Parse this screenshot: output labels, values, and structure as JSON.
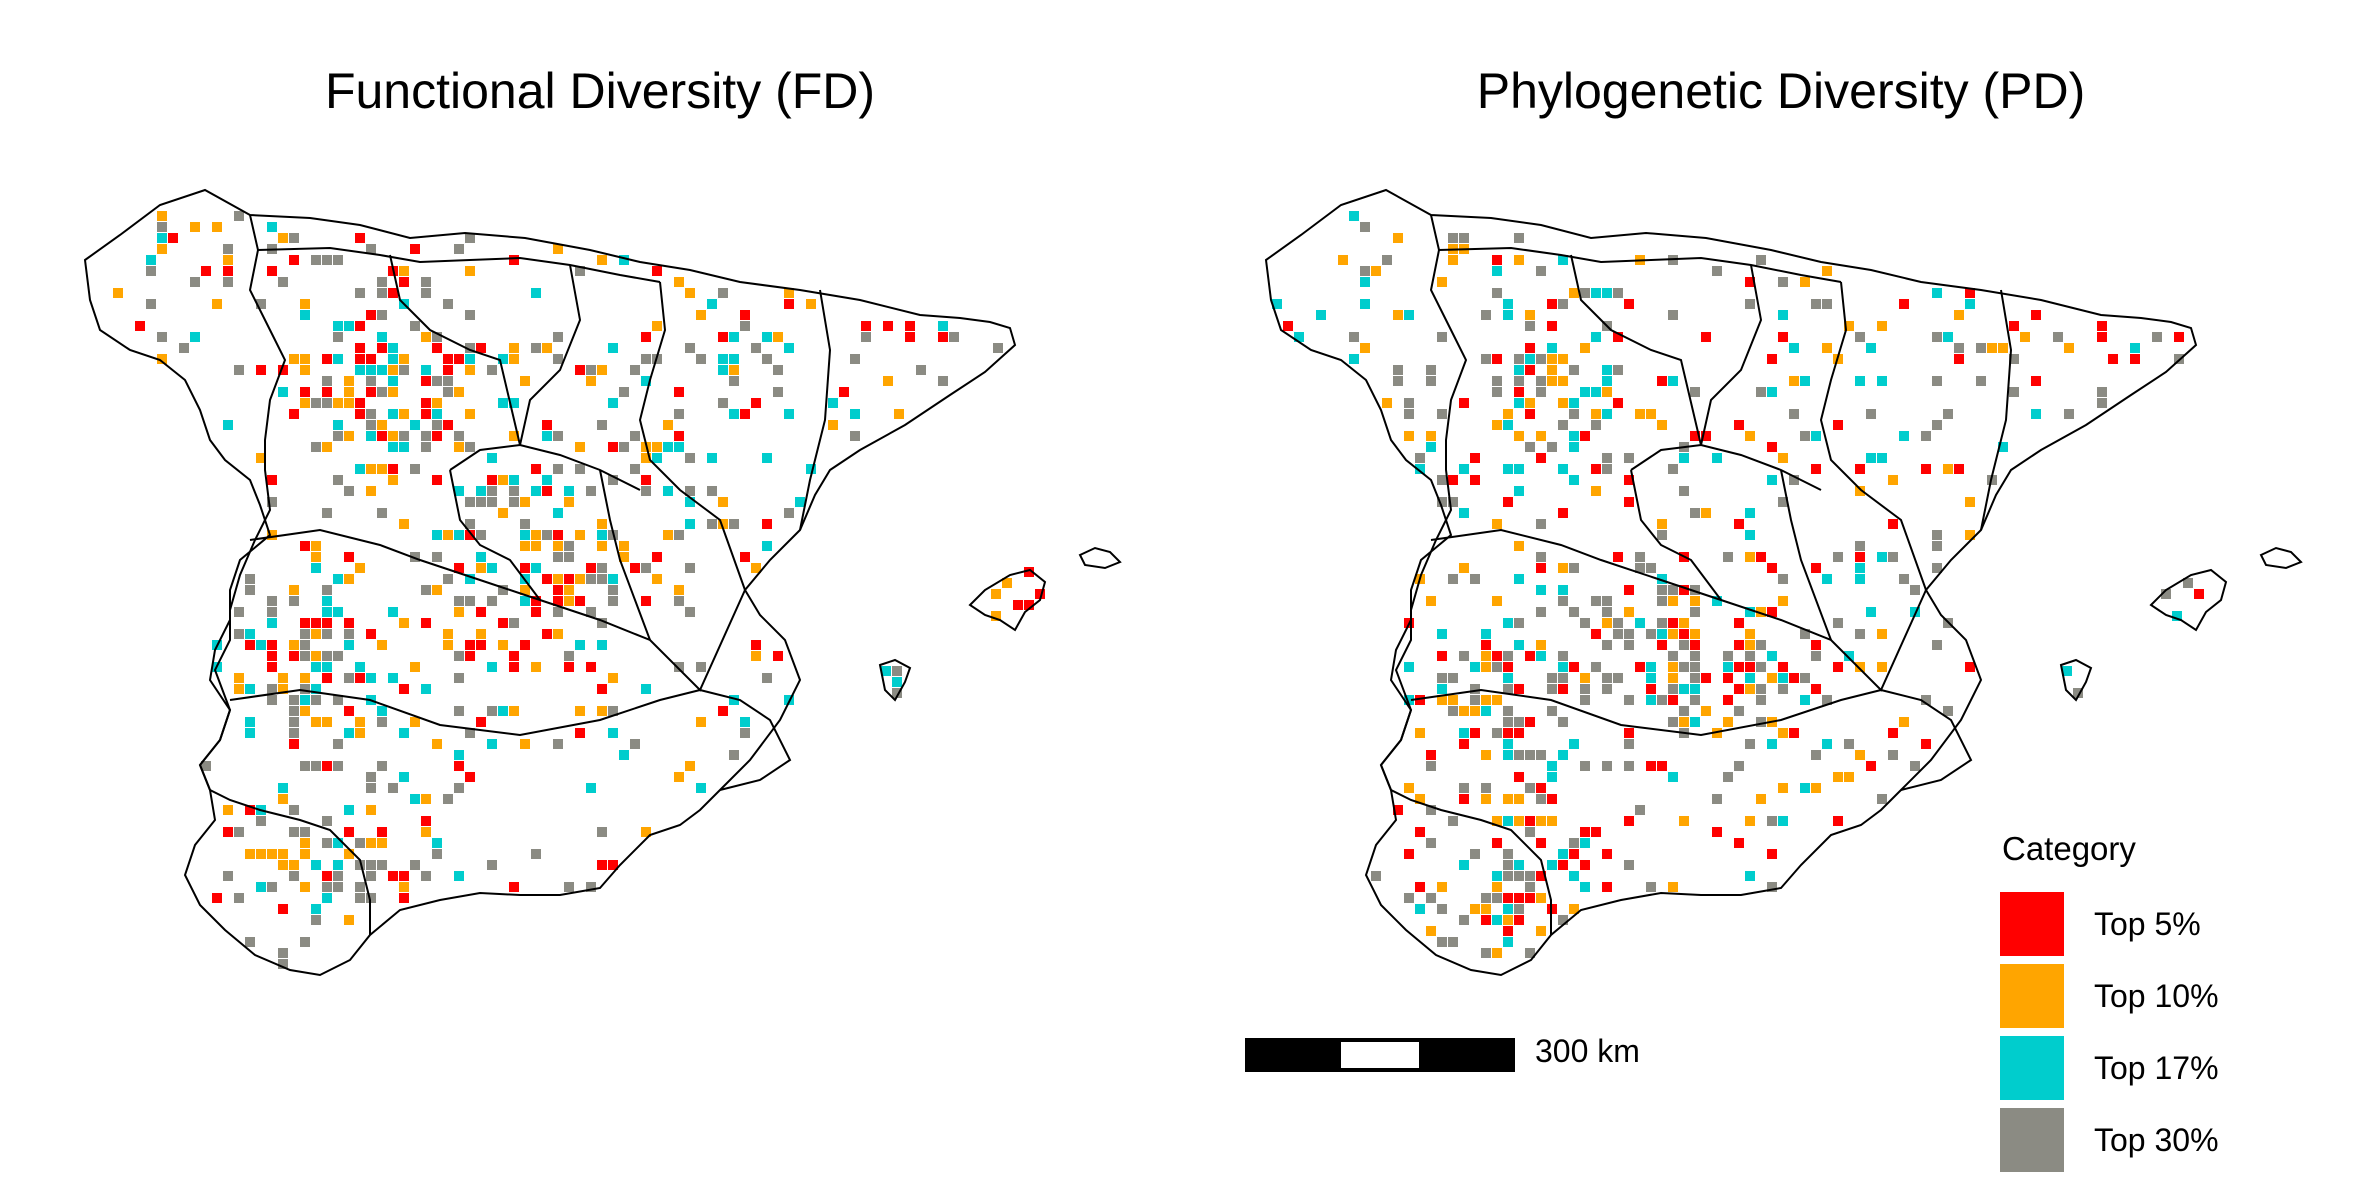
{
  "panels": [
    {
      "id": "fd",
      "title": "Functional Diversity (FD)"
    },
    {
      "id": "pd",
      "title": "Phylogenetic Diversity (PD)"
    }
  ],
  "legend": {
    "title": "Category",
    "items": [
      {
        "label": "Top 5%",
        "color": "#ff0000"
      },
      {
        "label": "Top 10%",
        "color": "#ffa500"
      },
      {
        "label": "Top 17%",
        "color": "#00cdcd"
      },
      {
        "label": "Top 30%",
        "color": "#8b8b83"
      }
    ]
  },
  "scalebar": {
    "label": "300 km"
  }
}
